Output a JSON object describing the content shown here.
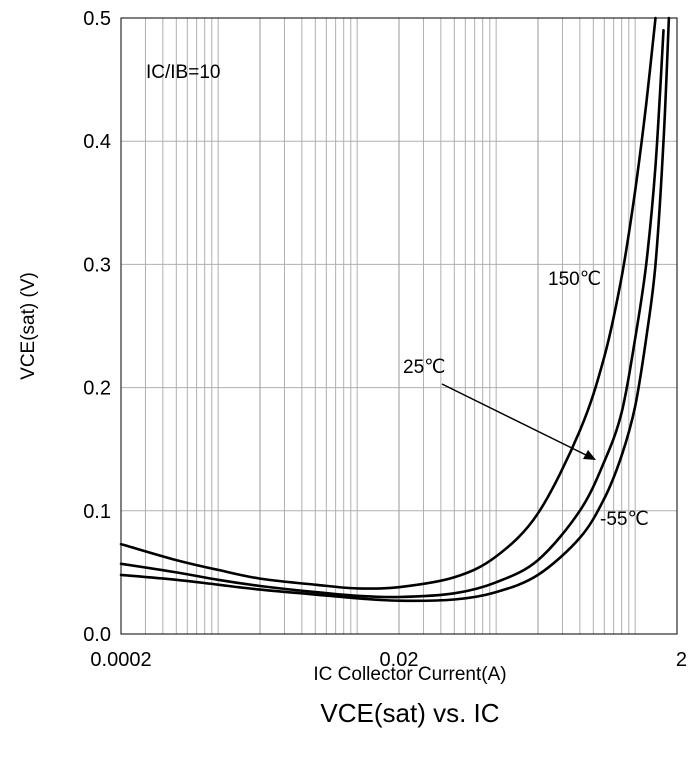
{
  "chart_data": {
    "type": "line",
    "title": "VCE(sat) vs. IC",
    "xlabel": "IC Collector Current(A)",
    "ylabel": "VCE(sat) (V)",
    "x_scale": "log",
    "xlim": [
      0.0002,
      2
    ],
    "ylim": [
      0,
      0.5
    ],
    "x_tick_labels": [
      "0.0002",
      "0.02",
      "2"
    ],
    "x_tick_values": [
      0.0002,
      0.02,
      2
    ],
    "y_tick_labels": [
      "0.0",
      "0.1",
      "0.2",
      "0.3",
      "0.4",
      "0.5"
    ],
    "y_tick_values": [
      0,
      0.1,
      0.2,
      0.3,
      0.4,
      0.5
    ],
    "grid": true,
    "condition": "IC/IB=10",
    "series": [
      {
        "name": "150℃",
        "x": [
          0.0002,
          0.0005,
          0.001,
          0.002,
          0.005,
          0.01,
          0.02,
          0.05,
          0.1,
          0.2,
          0.4,
          0.6,
          0.8,
          1.0,
          1.2,
          1.4
        ],
        "y": [
          0.073,
          0.06,
          0.052,
          0.045,
          0.04,
          0.037,
          0.038,
          0.046,
          0.063,
          0.098,
          0.165,
          0.225,
          0.29,
          0.36,
          0.43,
          0.5
        ]
      },
      {
        "name": "25℃",
        "x": [
          0.0002,
          0.0005,
          0.001,
          0.002,
          0.005,
          0.01,
          0.02,
          0.05,
          0.1,
          0.2,
          0.4,
          0.6,
          0.8,
          1.0,
          1.2,
          1.4,
          1.6
        ],
        "y": [
          0.057,
          0.05,
          0.044,
          0.039,
          0.034,
          0.031,
          0.03,
          0.033,
          0.042,
          0.06,
          0.1,
          0.14,
          0.18,
          0.24,
          0.3,
          0.38,
          0.49
        ]
      },
      {
        "name": "-55℃",
        "x": [
          0.0002,
          0.0005,
          0.001,
          0.002,
          0.005,
          0.01,
          0.02,
          0.05,
          0.1,
          0.2,
          0.4,
          0.6,
          0.8,
          1.0,
          1.2,
          1.4,
          1.6,
          1.75
        ],
        "y": [
          0.048,
          0.044,
          0.04,
          0.036,
          0.032,
          0.029,
          0.027,
          0.028,
          0.034,
          0.048,
          0.078,
          0.11,
          0.145,
          0.185,
          0.24,
          0.3,
          0.4,
          0.5
        ]
      }
    ],
    "annotations": [
      {
        "text": "IC/IB=10"
      },
      {
        "text": "150℃"
      },
      {
        "text": "25℃"
      },
      {
        "text": "-55℃"
      }
    ]
  },
  "colors": {
    "line": "#000000",
    "grid": "#b0b0b0",
    "axis": "#000000"
  }
}
